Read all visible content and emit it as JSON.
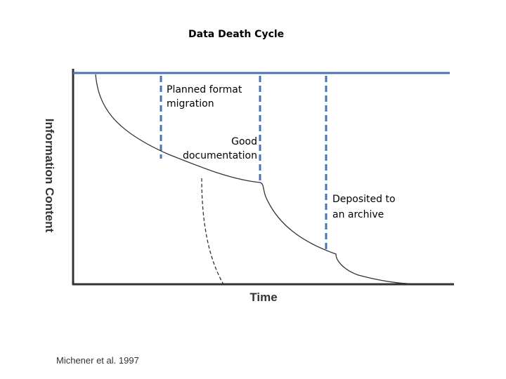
{
  "title": "Data Death Cycle",
  "notes": {
    "planned_format_migration": "Planned format migration",
    "good_documentation": "Good documentation",
    "deposited_to_archive": "Deposited to an archive"
  },
  "axes": {
    "y_label": "Information Content",
    "x_label": "Time"
  },
  "citation": "Michener et al. 1997",
  "colors": {
    "reference_line": "#4a73b0",
    "marker_dashed": "#4a73b0",
    "curve": "#333333",
    "axis": "#333333"
  }
}
